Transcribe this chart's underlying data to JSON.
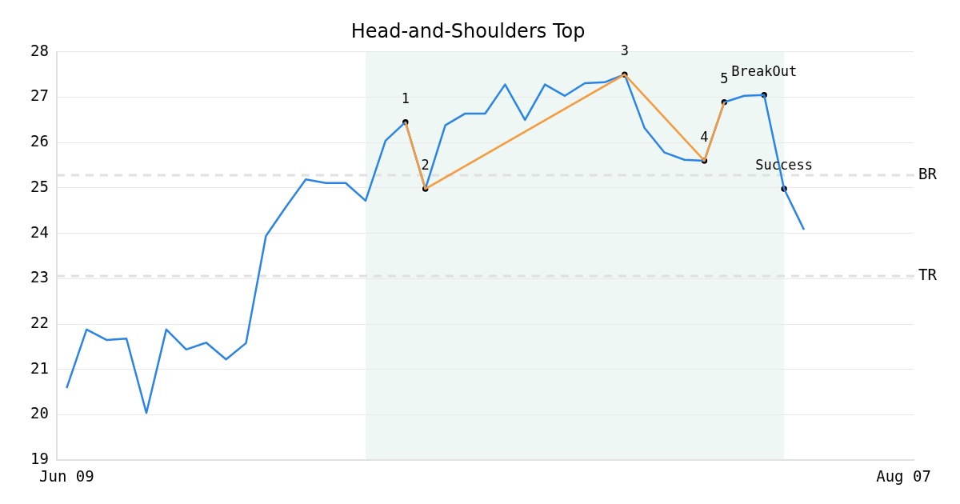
{
  "chart_data": {
    "type": "line",
    "title": "Head-and-Shoulders Top",
    "categories": [
      "Jun 09",
      null,
      null,
      null,
      null,
      null,
      null,
      null,
      null,
      null,
      null,
      null,
      null,
      null,
      null,
      null,
      null,
      null,
      null,
      null,
      null,
      null,
      null,
      null,
      null,
      null,
      null,
      null,
      null,
      null,
      null,
      null,
      null,
      null,
      null,
      null,
      null,
      null,
      null,
      null,
      null,
      null,
      "Aug 07"
    ],
    "ylim": [
      19,
      28
    ],
    "yticks": [
      19,
      20,
      21,
      22,
      23,
      24,
      25,
      26,
      27,
      28
    ],
    "grid": "y",
    "legend": false,
    "marker": "none",
    "series": [
      {
        "color": "#2a84e8",
        "values": [
          20.59,
          21.88,
          21.65,
          21.68,
          20.04,
          21.88,
          21.44,
          21.59,
          21.22,
          21.58,
          23.94,
          24.58,
          25.19,
          25.11,
          25.11,
          24.72,
          26.04,
          26.45,
          24.98,
          26.38,
          26.64,
          26.64,
          27.28,
          26.5,
          27.28,
          27.03,
          27.31,
          27.33,
          27.5,
          26.32,
          25.78,
          25.62,
          25.6,
          26.89,
          27.03,
          27.05,
          24.98,
          24.08,
          null,
          null,
          null,
          null,
          null
        ]
      },
      {
        "color": "#f79a3e",
        "values": [
          null,
          null,
          null,
          null,
          null,
          null,
          null,
          null,
          null,
          null,
          null,
          null,
          null,
          null,
          null,
          null,
          null,
          26.45,
          24.98,
          null,
          null,
          null,
          null,
          null,
          null,
          null,
          null,
          null,
          27.5,
          null,
          null,
          null,
          25.6,
          26.89,
          null,
          null,
          null,
          null,
          null,
          null,
          null,
          null,
          null
        ]
      },
      {
        "type": "scatter",
        "color": "#000000",
        "marker": "circle",
        "values": [
          null,
          null,
          null,
          null,
          null,
          null,
          null,
          null,
          null,
          null,
          null,
          null,
          null,
          null,
          null,
          null,
          null,
          26.45,
          24.98,
          null,
          null,
          null,
          null,
          null,
          null,
          null,
          null,
          null,
          27.5,
          null,
          null,
          null,
          25.6,
          26.89,
          null,
          27.05,
          24.98,
          null,
          null,
          null,
          null,
          null,
          null
        ]
      }
    ],
    "annotations": [
      "1",
      "2",
      "3",
      "4",
      "5",
      "BreakOut",
      "Success"
    ],
    "ref_lines": [
      {
        "axis": "y",
        "value": 25.28,
        "label": "BR",
        "color": "#e0e0e0",
        "line_style": "dashed"
      },
      {
        "axis": "y",
        "value": 23.06,
        "label": "TR",
        "color": "#e0e0e0",
        "line_style": "dashed"
      }
    ]
  }
}
